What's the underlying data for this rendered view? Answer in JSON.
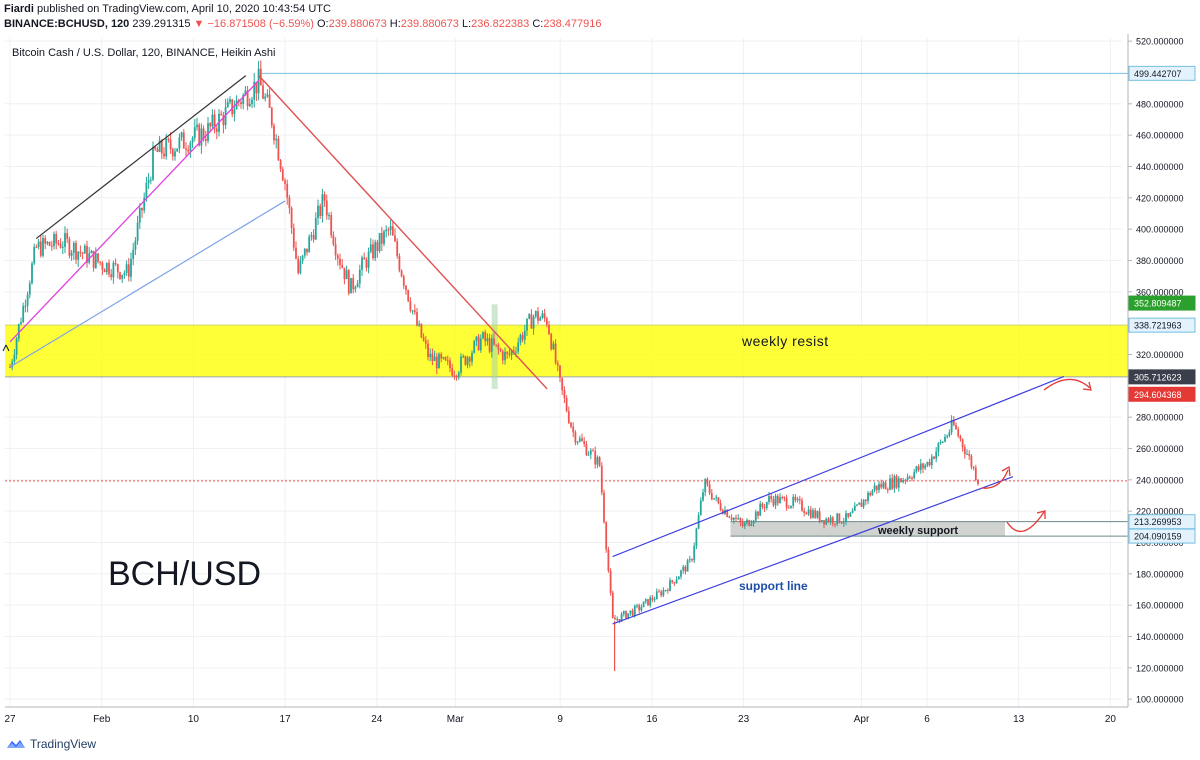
{
  "header": {
    "publisher": "Fiardi",
    "published_line": "published on TradingView.com, April 10, 2020 10:43:54 UTC",
    "symbol": "BINANCE:BCHUSD, 120",
    "last_price": "239.291315",
    "change": "▼ −16.871508 (−6.59%)",
    "ohlc": [
      {
        "label": "O:",
        "value": "239.880673"
      },
      {
        "label": "H:",
        "value": "239.880673"
      },
      {
        "label": "L:",
        "value": "236.822383"
      },
      {
        "label": "C:",
        "value": "238.477916"
      }
    ]
  },
  "footer": {
    "brand": "TradingView"
  },
  "colors": {
    "up": "#26a69a",
    "down": "#ef5350",
    "grid": "#eef0f3",
    "zone_fill": "#ffff00",
    "support_fill": "#c0c4c0",
    "channel": "#3f3fe0",
    "trend_red": "#e05050",
    "trend_pink": "#e040e0",
    "trend_black": "#333333",
    "trend_blue": "#7fa4e8"
  },
  "chart_data": {
    "type": "candlestick",
    "title": "Bitcoin Cash / U.S. Dollar, 120, BINANCE, Heikin Ashi",
    "watermark": "BCH/USD",
    "x_labels": [
      "27",
      "Feb",
      "10",
      "17",
      "24",
      "Mar",
      "9",
      "16",
      "23",
      "Apr",
      "6",
      "13",
      "20"
    ],
    "y_ticks": [
      "100.000000",
      "120.000000",
      "140.000000",
      "160.000000",
      "180.000000",
      "200.000000",
      "220.000000",
      "240.000000",
      "260.000000",
      "280.000000",
      "320.000000",
      "360.000000",
      "380.000000",
      "400.000000",
      "420.000000",
      "440.000000",
      "460.000000",
      "480.000000",
      "520.000000"
    ],
    "ylim": [
      95,
      522
    ],
    "price_labels": [
      {
        "value": "499.442707",
        "kind": "level"
      },
      {
        "value": "352.809487",
        "kind": "green"
      },
      {
        "value": "338.721963",
        "kind": "level"
      },
      {
        "value": "305.712623",
        "kind": "dark"
      },
      {
        "value": "294.604368",
        "kind": "red"
      },
      {
        "value": "213.269953",
        "kind": "level"
      },
      {
        "value": "204.090159",
        "kind": "level"
      }
    ],
    "zones": [
      {
        "label": "weekly resist",
        "from": 305.7,
        "to": 338.7
      },
      {
        "label": "weekly support",
        "from": 204.1,
        "to": 213.3
      }
    ],
    "annotations": [
      "support line"
    ],
    "price_path": [
      [
        "2020-01-27",
        312
      ],
      [
        "2020-01-29",
        388
      ],
      [
        "2020-01-31",
        392
      ],
      [
        "2020-02-03",
        378
      ],
      [
        "2020-02-05",
        372
      ],
      [
        "2020-02-07",
        448
      ],
      [
        "2020-02-09",
        455
      ],
      [
        "2020-02-11",
        462
      ],
      [
        "2020-02-13",
        478
      ],
      [
        "2020-02-15",
        494
      ],
      [
        "2020-02-16",
        470
      ],
      [
        "2020-02-17",
        430
      ],
      [
        "2020-02-18",
        372
      ],
      [
        "2020-02-20",
        420
      ],
      [
        "2020-02-21",
        385
      ],
      [
        "2020-02-22",
        362
      ],
      [
        "2020-02-23",
        378
      ],
      [
        "2020-02-25",
        400
      ],
      [
        "2020-02-27",
        340
      ],
      [
        "2020-02-28",
        318
      ],
      [
        "2020-03-01",
        310
      ],
      [
        "2020-03-03",
        330
      ],
      [
        "2020-03-05",
        318
      ],
      [
        "2020-03-07",
        345
      ],
      [
        "2020-03-08",
        342
      ],
      [
        "2020-03-09",
        300
      ],
      [
        "2020-03-10",
        270
      ],
      [
        "2020-03-12",
        250
      ],
      [
        "2020-03-13",
        150
      ],
      [
        "2020-03-15",
        158
      ],
      [
        "2020-03-17",
        170
      ],
      [
        "2020-03-19",
        188
      ],
      [
        "2020-03-20",
        238
      ],
      [
        "2020-03-21",
        225
      ],
      [
        "2020-03-23",
        210
      ],
      [
        "2020-03-25",
        228
      ],
      [
        "2020-03-27",
        225
      ],
      [
        "2020-03-29",
        215
      ],
      [
        "2020-03-31",
        215
      ],
      [
        "2020-04-02",
        235
      ],
      [
        "2020-04-04",
        240
      ],
      [
        "2020-04-06",
        250
      ],
      [
        "2020-04-08",
        275
      ],
      [
        "2020-04-09",
        258
      ],
      [
        "2020-04-10",
        238
      ]
    ]
  }
}
